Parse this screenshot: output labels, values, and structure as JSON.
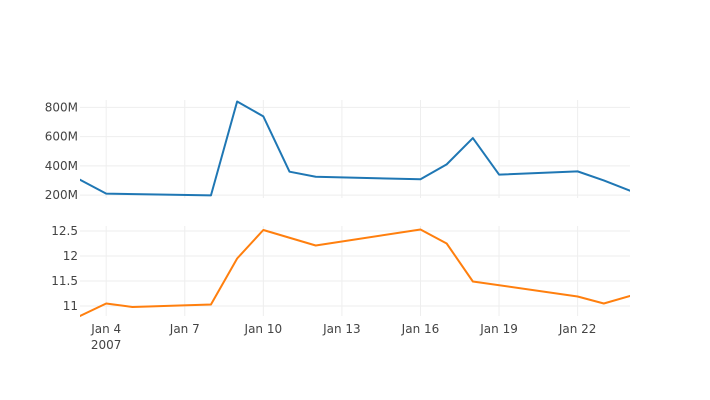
{
  "chart_data": {
    "type": "line",
    "layout": "stacked-subplots-shared-x",
    "x_axis": {
      "type": "date",
      "range": [
        "2007-01-03",
        "2007-01-24"
      ],
      "tick_labels": [
        "Jan 4",
        "Jan 7",
        "Jan 10",
        "Jan 13",
        "Jan 16",
        "Jan 19",
        "Jan 22"
      ],
      "tick_dates": [
        "2007-01-04",
        "2007-01-07",
        "2007-01-10",
        "2007-01-13",
        "2007-01-16",
        "2007-01-19",
        "2007-01-22"
      ],
      "year_label": "2007",
      "grid": true
    },
    "subplots": [
      {
        "name": "top",
        "ylim": [
          180000000,
          850000000
        ],
        "y_ticks": [
          200000000,
          400000000,
          600000000,
          800000000
        ],
        "y_tick_labels": [
          "200M",
          "400M",
          "600M",
          "800M"
        ],
        "grid": true,
        "series": [
          {
            "color": "#1f77b4",
            "x": [
              "2007-01-03",
              "2007-01-04",
              "2007-01-08",
              "2007-01-09",
              "2007-01-10",
              "2007-01-11",
              "2007-01-12",
              "2007-01-16",
              "2007-01-17",
              "2007-01-18",
              "2007-01-19",
              "2007-01-22",
              "2007-01-23",
              "2007-01-24"
            ],
            "y": [
              305000000,
              210000000,
              198000000,
              840000000,
              738000000,
              360000000,
              325000000,
              308000000,
              410000000,
              590000000,
              340000000,
              362000000,
              300000000,
              230000000
            ]
          }
        ]
      },
      {
        "name": "bottom",
        "ylim": [
          10.8,
          12.6
        ],
        "y_ticks": [
          11,
          11.5,
          12,
          12.5
        ],
        "y_tick_labels": [
          "11",
          "11.5",
          "12",
          "12.5"
        ],
        "grid": true,
        "series": [
          {
            "color": "#ff7f0e",
            "x": [
              "2007-01-03",
              "2007-01-04",
              "2007-01-05",
              "2007-01-08",
              "2007-01-09",
              "2007-01-10",
              "2007-01-12",
              "2007-01-16",
              "2007-01-17",
              "2007-01-18",
              "2007-01-22",
              "2007-01-23",
              "2007-01-24"
            ],
            "y": [
              10.8,
              11.05,
              10.98,
              11.03,
              11.95,
              12.52,
              12.21,
              12.53,
              12.25,
              11.49,
              11.19,
              11.05,
              11.2
            ]
          }
        ]
      }
    ]
  }
}
